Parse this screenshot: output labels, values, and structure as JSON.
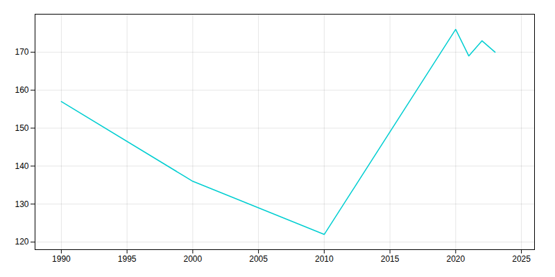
{
  "chart_data": {
    "type": "line",
    "x": [
      1990,
      2000,
      2010,
      2020,
      2021,
      2022,
      2023
    ],
    "values": [
      157,
      136,
      122,
      176,
      169,
      173,
      170
    ],
    "color": "#00CED1",
    "xlim": [
      1988,
      2026
    ],
    "ylim": [
      118,
      180
    ],
    "xticks": [
      1990,
      1995,
      2000,
      2005,
      2010,
      2015,
      2020,
      2025
    ],
    "yticks": [
      120,
      130,
      140,
      150,
      160,
      170
    ],
    "grid": true
  }
}
